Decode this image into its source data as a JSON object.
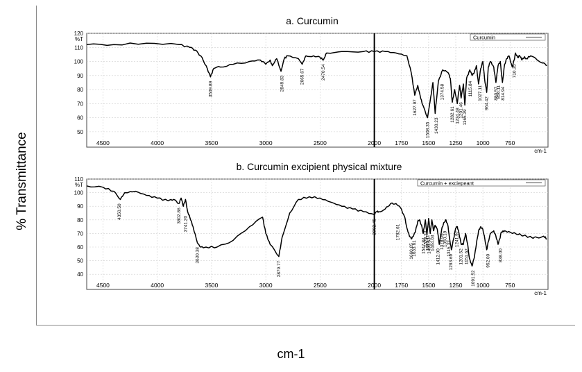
{
  "ylabel": "% Transmittance",
  "xlabel": "cm-1",
  "axis_unit": "cm-1",
  "chart_data": [
    {
      "type": "line",
      "title": "a. Curcumin",
      "legend": "Curcumin",
      "legend_position": "top-right",
      "x_ticks": [
        4500,
        4000,
        3500,
        3000,
        2500,
        2000,
        1750,
        1500,
        1250,
        1000,
        750
      ],
      "y_ticks": [
        50,
        60,
        70,
        80,
        90,
        100,
        110,
        120
      ],
      "y_tick_label_extra": "%T",
      "ylim": [
        45,
        120
      ],
      "xlim": [
        4650,
        400
      ],
      "x_reversed": true,
      "grid": true,
      "series": [
        {
          "name": "Curcumin",
          "points": [
            [
              4650,
              112
            ],
            [
              4400,
              112
            ],
            [
              4100,
              113
            ],
            [
              3800,
              112
            ],
            [
              3700,
              110
            ],
            [
              3650,
              108
            ],
            [
              3600,
              104
            ],
            [
              3550,
              97
            ],
            [
              3510,
              89
            ],
            [
              3480,
              95
            ],
            [
              3420,
              96
            ],
            [
              3300,
              98
            ],
            [
              3150,
              100
            ],
            [
              3050,
              101
            ],
            [
              3000,
              98
            ],
            [
              2960,
              101
            ],
            [
              2940,
              97
            ],
            [
              2900,
              102
            ],
            [
              2860,
              93
            ],
            [
              2830,
              102
            ],
            [
              2800,
              104
            ],
            [
              2700,
              102
            ],
            [
              2665,
              98
            ],
            [
              2630,
              104
            ],
            [
              2560,
              104
            ],
            [
              2500,
              103
            ],
            [
              2470,
              101
            ],
            [
              2440,
              106
            ],
            [
              2300,
              107
            ],
            [
              2100,
              107
            ],
            [
              2000,
              107
            ],
            [
              1900,
              107
            ],
            [
              1800,
              106
            ],
            [
              1700,
              104
            ],
            [
              1660,
              92
            ],
            [
              1628,
              76
            ],
            [
              1600,
              83
            ],
            [
              1585,
              78
            ],
            [
              1560,
              70
            ],
            [
              1510,
              60
            ],
            [
              1480,
              75
            ],
            [
              1460,
              85
            ],
            [
              1440,
              63
            ],
            [
              1410,
              86
            ],
            [
              1370,
              94
            ],
            [
              1320,
              92
            ],
            [
              1300,
              88
            ],
            [
              1282,
              71
            ],
            [
              1260,
              80
            ],
            [
              1236,
              70
            ],
            [
              1215,
              83
            ],
            [
              1200,
              74
            ],
            [
              1180,
              84
            ],
            [
              1166,
              69
            ],
            [
              1150,
              88
            ],
            [
              1120,
              94
            ],
            [
              1100,
              90
            ],
            [
              1080,
              92
            ],
            [
              1060,
              97
            ],
            [
              1040,
              84
            ],
            [
              1020,
              95
            ],
            [
              1000,
              100
            ],
            [
              985,
              88
            ],
            [
              965,
              78
            ],
            [
              950,
              96
            ],
            [
              930,
              100
            ],
            [
              900,
              96
            ],
            [
              880,
              85
            ],
            [
              860,
              97
            ],
            [
              840,
              100
            ],
            [
              820,
              85
            ],
            [
              800,
              98
            ],
            [
              780,
              102
            ],
            [
              760,
              104
            ],
            [
              730,
              96
            ],
            [
              712,
              101
            ],
            [
              700,
              106
            ],
            [
              680,
              103
            ],
            [
              660,
              104
            ],
            [
              640,
              101
            ],
            [
              620,
              103
            ],
            [
              600,
              102
            ],
            [
              560,
              104
            ],
            [
              500,
              101
            ],
            [
              440,
              99
            ],
            [
              410,
              97
            ]
          ]
        }
      ],
      "peak_labels": [
        {
          "x": 3509.89,
          "y": 89,
          "text": "3509.89"
        },
        {
          "x": 2849.83,
          "y": 93,
          "text": "2849.83"
        },
        {
          "x": 2665.67,
          "y": 98,
          "text": "2665.67"
        },
        {
          "x": 2470.54,
          "y": 101,
          "text": "2470.54"
        },
        {
          "x": 1627.97,
          "y": 76,
          "text": "1627.97"
        },
        {
          "x": 1508.35,
          "y": 60,
          "text": "1508.35"
        },
        {
          "x": 1430.23,
          "y": 63,
          "text": "1430.23"
        },
        {
          "x": 1374.58,
          "y": 87,
          "text": "1374.58"
        },
        {
          "x": 1282.61,
          "y": 71,
          "text": "1282.61"
        },
        {
          "x": 1234.48,
          "y": 70,
          "text": "1234.48"
        },
        {
          "x": 1201.46,
          "y": 74,
          "text": "1201.46"
        },
        {
          "x": 1165.39,
          "y": 69,
          "text": "1165.39"
        },
        {
          "x": 1115.84,
          "y": 89,
          "text": "1115.84"
        },
        {
          "x": 1027.11,
          "y": 86,
          "text": "1027.11"
        },
        {
          "x": 964.42,
          "y": 78,
          "text": "964.42"
        },
        {
          "x": 880.57,
          "y": 85,
          "text": "880.57"
        },
        {
          "x": 856.11,
          "y": 86,
          "text": "856.11"
        },
        {
          "x": 814.94,
          "y": 85,
          "text": "814.94"
        },
        {
          "x": 710.35,
          "y": 101,
          "text": "710.35"
        }
      ],
      "marker_x": 2000
    },
    {
      "type": "line",
      "title": "b. Curcumin excipient physical mixture",
      "legend": "Curcumin + exciepeant",
      "legend_position": "top-right",
      "x_ticks": [
        4500,
        4000,
        3500,
        3000,
        2500,
        2000,
        1750,
        1500,
        1250,
        1000,
        750
      ],
      "y_ticks": [
        40,
        50,
        60,
        70,
        80,
        90,
        100,
        110
      ],
      "y_tick_label_extra": "%T",
      "ylim": [
        35,
        110
      ],
      "xlim": [
        4650,
        400
      ],
      "x_reversed": true,
      "grid": true,
      "series": [
        {
          "name": "Curcumin + exciepeant",
          "points": [
            [
              4650,
              105
            ],
            [
              4500,
              104
            ],
            [
              4400,
              101
            ],
            [
              4340,
              95
            ],
            [
              4300,
              100
            ],
            [
              4200,
              101
            ],
            [
              4100,
              98
            ],
            [
              4000,
              96
            ],
            [
              3900,
              94
            ],
            [
              3850,
              95
            ],
            [
              3800,
              92
            ],
            [
              3780,
              96
            ],
            [
              3760,
              90
            ],
            [
              3740,
              95
            ],
            [
              3720,
              86
            ],
            [
              3700,
              82
            ],
            [
              3670,
              75
            ],
            [
              3630,
              63
            ],
            [
              3600,
              60
            ],
            [
              3550,
              60
            ],
            [
              3450,
              60
            ],
            [
              3300,
              65
            ],
            [
              3150,
              75
            ],
            [
              3030,
              82
            ],
            [
              3000,
              70
            ],
            [
              2960,
              62
            ],
            [
              2880,
              53
            ],
            [
              2850,
              67
            ],
            [
              2780,
              85
            ],
            [
              2700,
              95
            ],
            [
              2600,
              97
            ],
            [
              2500,
              96
            ],
            [
              2400,
              93
            ],
            [
              2300,
              90
            ],
            [
              2200,
              88
            ],
            [
              2100,
              86
            ],
            [
              2002,
              84
            ],
            [
              1980,
              86
            ],
            [
              1960,
              86
            ],
            [
              1900,
              88
            ],
            [
              1850,
              92
            ],
            [
              1800,
              92
            ],
            [
              1760,
              89
            ],
            [
              1720,
              82
            ],
            [
              1700,
              74
            ],
            [
              1680,
              69
            ],
            [
              1660,
              66
            ],
            [
              1640,
              68
            ],
            [
              1620,
              72
            ],
            [
              1600,
              79
            ],
            [
              1585,
              80
            ],
            [
              1565,
              76
            ],
            [
              1550,
              70
            ],
            [
              1530,
              80
            ],
            [
              1515,
              69
            ],
            [
              1500,
              81
            ],
            [
              1485,
              70
            ],
            [
              1470,
              80
            ],
            [
              1455,
              72
            ],
            [
              1440,
              76
            ],
            [
              1420,
              73
            ],
            [
              1402,
              62
            ],
            [
              1380,
              73
            ],
            [
              1360,
              78
            ],
            [
              1340,
              80
            ],
            [
              1320,
              75
            ],
            [
              1310,
              68
            ],
            [
              1290,
              58
            ],
            [
              1270,
              66
            ],
            [
              1250,
              74
            ],
            [
              1235,
              75
            ],
            [
              1220,
              70
            ],
            [
              1200,
              62
            ],
            [
              1180,
              62
            ],
            [
              1160,
              70
            ],
            [
              1140,
              62
            ],
            [
              1125,
              52
            ],
            [
              1100,
              46
            ],
            [
              1080,
              52
            ],
            [
              1060,
              62
            ],
            [
              1040,
              72
            ],
            [
              1020,
              75
            ],
            [
              1000,
              73
            ],
            [
              982,
              66
            ],
            [
              965,
              58
            ],
            [
              950,
              64
            ],
            [
              930,
              70
            ],
            [
              900,
              72
            ],
            [
              880,
              68
            ],
            [
              860,
              62
            ],
            [
              845,
              66
            ],
            [
              830,
              71
            ],
            [
              800,
              72
            ],
            [
              750,
              71
            ],
            [
              700,
              70
            ],
            [
              650,
              69
            ],
            [
              600,
              68
            ],
            [
              550,
              67
            ],
            [
              500,
              67
            ],
            [
              440,
              68
            ],
            [
              410,
              66
            ]
          ]
        }
      ],
      "peak_labels": [
        {
          "x": 4350,
          "y": 95,
          "text": "4350.50"
        },
        {
          "x": 3800,
          "y": 92,
          "text": "3802.86"
        },
        {
          "x": 3740,
          "y": 86,
          "text": "3741.20"
        },
        {
          "x": 3630,
          "y": 63,
          "text": "3630.38"
        },
        {
          "x": 2879.77,
          "y": 53,
          "text": "2879.77"
        },
        {
          "x": 2002.45,
          "y": 84,
          "text": "2002.45"
        },
        {
          "x": 1782.61,
          "y": 80,
          "text": "1782.61"
        },
        {
          "x": 1660.05,
          "y": 66,
          "text": "1660.05"
        },
        {
          "x": 1633.61,
          "y": 68,
          "text": "1633.61"
        },
        {
          "x": 1547.84,
          "y": 70,
          "text": "1547.84"
        },
        {
          "x": 1528.23,
          "y": 75,
          "text": "1528.23"
        },
        {
          "x": 1510.11,
          "y": 72,
          "text": "1510.11"
        },
        {
          "x": 1496.63,
          "y": 70,
          "text": "1496.63"
        },
        {
          "x": 1464.03,
          "y": 72,
          "text": "1464.03"
        },
        {
          "x": 1412.0,
          "y": 62,
          "text": "1412.00"
        },
        {
          "x": 1378.05,
          "y": 73,
          "text": "1378.05"
        },
        {
          "x": 1350.19,
          "y": 75,
          "text": "1350.19"
        },
        {
          "x": 1315.32,
          "y": 68,
          "text": "1315.32"
        },
        {
          "x": 1293.69,
          "y": 58,
          "text": "1293.69"
        },
        {
          "x": 1241.97,
          "y": 75,
          "text": "1241.97"
        },
        {
          "x": 1201.52,
          "y": 62,
          "text": "1201.52"
        },
        {
          "x": 1151.67,
          "y": 62,
          "text": "1151.67"
        },
        {
          "x": 1091.52,
          "y": 46,
          "text": "1091.52"
        },
        {
          "x": 952.0,
          "y": 58,
          "text": "952.00"
        },
        {
          "x": 838.0,
          "y": 62,
          "text": "838.00"
        }
      ],
      "marker_x": 2000
    }
  ]
}
